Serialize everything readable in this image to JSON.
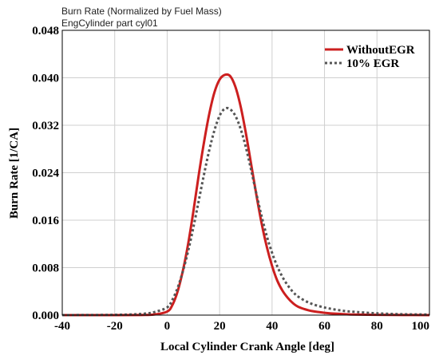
{
  "chart_data": {
    "type": "line",
    "title": "Burn Rate (Normalized by Fuel Mass)",
    "subtitle": "EngCylinder part cyl01",
    "xlabel": "Local Cylinder Crank Angle [deg]",
    "ylabel": "Burn Rate [1/CA]",
    "xlim": [
      -40,
      100
    ],
    "ylim": [
      0,
      0.048
    ],
    "xticks": [
      "-40",
      "-20",
      "0",
      "20",
      "40",
      "60",
      "80",
      "100"
    ],
    "yticks": [
      "0.000",
      "0.008",
      "0.016",
      "0.024",
      "0.032",
      "0.040",
      "0.048"
    ],
    "grid": true,
    "legend_position": "top-right",
    "series": [
      {
        "name": "WithoutEGR",
        "color": "#cc1f1f",
        "style": "solid",
        "x": [
          -40,
          -20,
          -10,
          -5,
          0,
          2,
          4,
          6,
          8,
          10,
          12,
          14,
          16,
          18,
          20,
          22,
          24,
          26,
          28,
          30,
          32,
          34,
          36,
          38,
          40,
          42,
          44,
          46,
          48,
          50,
          54,
          58,
          62,
          66,
          70,
          80,
          90,
          100
        ],
        "y": [
          0,
          0,
          2e-05,
          0.0001,
          0.0006,
          0.0017,
          0.004,
          0.0075,
          0.012,
          0.0175,
          0.0235,
          0.029,
          0.0338,
          0.0375,
          0.0397,
          0.0405,
          0.0403,
          0.0385,
          0.0352,
          0.0307,
          0.0255,
          0.0203,
          0.0155,
          0.0115,
          0.0083,
          0.0058,
          0.0041,
          0.0029,
          0.002,
          0.0014,
          0.0008,
          0.0005,
          0.0003,
          0.0002,
          0.0001,
          5e-05,
          2e-05,
          0
        ]
      },
      {
        "name": "10% EGR",
        "color": "#555555",
        "style": "dotted",
        "x": [
          -40,
          -20,
          -10,
          -5,
          0,
          2,
          4,
          6,
          8,
          10,
          12,
          14,
          16,
          18,
          20,
          22,
          24,
          26,
          28,
          30,
          32,
          34,
          36,
          38,
          40,
          42,
          44,
          46,
          48,
          50,
          54,
          58,
          62,
          66,
          70,
          80,
          90,
          100
        ],
        "y": [
          0,
          5e-05,
          0.0002,
          0.0005,
          0.0013,
          0.0026,
          0.0046,
          0.0074,
          0.0108,
          0.0148,
          0.0192,
          0.0236,
          0.0277,
          0.0311,
          0.0336,
          0.0348,
          0.0347,
          0.0336,
          0.0314,
          0.0283,
          0.0245,
          0.0205,
          0.0167,
          0.0133,
          0.0105,
          0.0082,
          0.0064,
          0.005,
          0.0039,
          0.0031,
          0.0021,
          0.0015,
          0.0011,
          0.0008,
          0.0006,
          0.0003,
          0.00015,
          0.0001
        ]
      }
    ]
  }
}
